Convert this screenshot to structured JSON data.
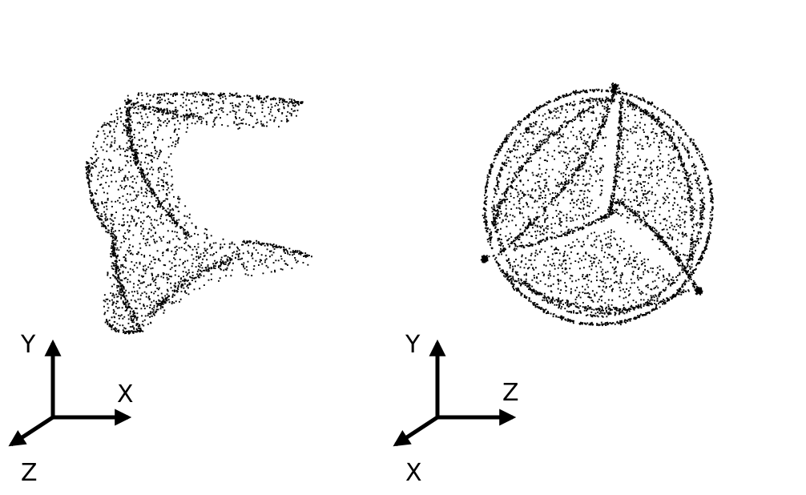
{
  "figure": {
    "background_color": "#ffffff",
    "point_color": "#000000",
    "panels": [
      {
        "view": "side",
        "point_cloud": "point-cloud-valve-side",
        "axes": {
          "up": "Y",
          "right": "X",
          "diagonal": "Z"
        }
      },
      {
        "view": "top",
        "point_cloud": "point-cloud-valve-top",
        "axes": {
          "up": "Y",
          "right": "Z",
          "diagonal": "X"
        }
      }
    ]
  }
}
